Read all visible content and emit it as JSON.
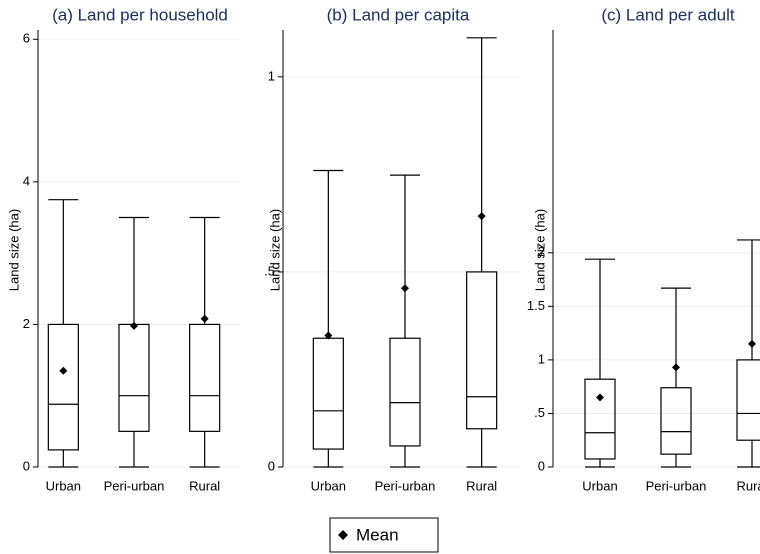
{
  "chart_data": [
    {
      "type": "box",
      "title": "(a) Land per household",
      "ylabel": "Land size (ha)",
      "categories": [
        "Urban",
        "Peri-urban",
        "Rural"
      ],
      "boxes": [
        {
          "low": 0,
          "q1": 0.24,
          "median": 0.88,
          "q3": 2.0,
          "high": 3.75,
          "mean": 1.35
        },
        {
          "low": 0,
          "q1": 0.5,
          "median": 1.0,
          "q3": 2.0,
          "high": 3.5,
          "mean": 1.98
        },
        {
          "low": 0,
          "q1": 0.5,
          "median": 1.0,
          "q3": 2.0,
          "high": 3.5,
          "mean": 2.08
        }
      ],
      "ylim": [
        0,
        6.13
      ],
      "yticks": [
        0,
        2,
        4,
        6
      ],
      "grid": true,
      "color": "#000000"
    },
    {
      "type": "box",
      "title": "(b) Land per capita",
      "ylabel": "Land size (ha)",
      "categories": [
        "Urban",
        "Peri-urban",
        "Rural"
      ],
      "boxes": [
        {
          "low": 0,
          "q1": 0.046,
          "median": 0.144,
          "q3": 0.33,
          "high": 0.76,
          "mean": 0.337
        },
        {
          "low": 0,
          "q1": 0.054,
          "median": 0.165,
          "q3": 0.33,
          "high": 0.748,
          "mean": 0.458
        },
        {
          "low": 0,
          "q1": 0.098,
          "median": 0.18,
          "q3": 0.5,
          "high": 1.1,
          "mean": 0.643
        }
      ],
      "ylim": [
        0,
        1.12
      ],
      "yticks": [
        0,
        {
          "value": 0.5,
          "label": ".5"
        },
        1
      ],
      "grid": true,
      "color": "#000000"
    },
    {
      "type": "box",
      "title": "(c) Land per adult",
      "ylabel": "Land size (ha)",
      "categories": [
        "Urban",
        "Peri-urban",
        "Rural"
      ],
      "boxes": [
        {
          "low": 0,
          "q1": 0.075,
          "median": 0.32,
          "q3": 0.82,
          "high": 1.94,
          "mean": 0.65
        },
        {
          "low": 0,
          "q1": 0.12,
          "median": 0.33,
          "q3": 0.74,
          "high": 1.67,
          "mean": 0.93
        },
        {
          "low": 0,
          "q1": 0.25,
          "median": 0.5,
          "q3": 1.0,
          "high": 2.12,
          "mean": 1.15
        }
      ],
      "ylim": [
        0,
        4.08
      ],
      "yticks": [
        0,
        {
          "value": 0.5,
          "label": ".5"
        },
        1,
        1.5,
        2
      ],
      "grid": true,
      "color": "#000000"
    }
  ],
  "legend_label": "Mean"
}
